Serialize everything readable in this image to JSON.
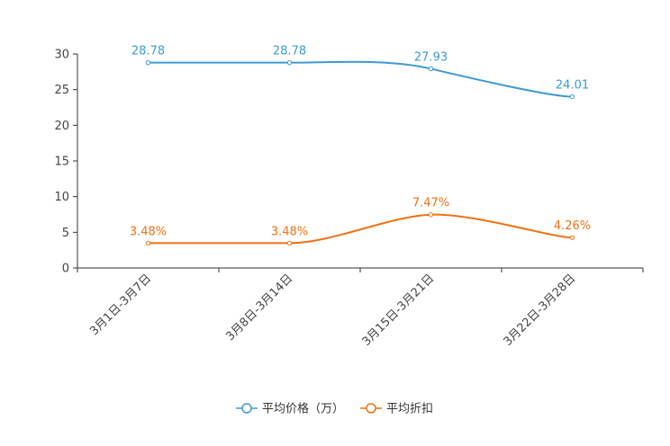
{
  "chart_data": {
    "type": "line",
    "title": "",
    "xlabel": "",
    "ylabel": "",
    "categories": [
      "3月1日-3月7日",
      "3月8日-3月14日",
      "3月15日-3月21日",
      "3月22日-3月28日"
    ],
    "ylim": [
      0,
      30
    ],
    "yticks": [
      0,
      5,
      10,
      15,
      20,
      25,
      30
    ],
    "grid": false,
    "legend_position": "bottom-center",
    "series": [
      {
        "name": "平均价格（万）",
        "values": [
          28.78,
          28.78,
          27.93,
          24.01
        ],
        "labels": [
          "28.78",
          "28.78",
          "27.93",
          "24.01"
        ],
        "color": "#3b9bd0"
      },
      {
        "name": "平均折扣",
        "values": [
          3.48,
          3.48,
          7.47,
          4.26
        ],
        "labels": [
          "3.48%",
          "3.48%",
          "7.47%",
          "4.26%"
        ],
        "color": "#f07114"
      }
    ]
  }
}
